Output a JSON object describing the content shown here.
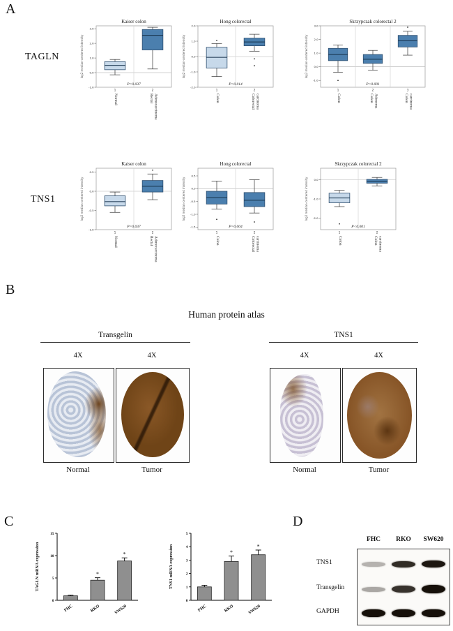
{
  "figure": {
    "panel_labels": {
      "a": "A",
      "b": "B",
      "c": "C",
      "d": "D"
    }
  },
  "panel_a": {
    "genes": {
      "row1": "TAGLN",
      "row2": "TNS1"
    }
  },
  "panel_b": {
    "title": "Human protein atlas",
    "groups": [
      {
        "name": "Transgelin",
        "images": [
          {
            "mag": "4X",
            "label": "Normal"
          },
          {
            "mag": "4X",
            "label": "Tumor"
          }
        ]
      },
      {
        "name": "TNS1",
        "images": [
          {
            "mag": "4X",
            "label": "Normal"
          },
          {
            "mag": "4X",
            "label": "Tumor"
          }
        ]
      }
    ]
  },
  "panel_d": {
    "lane_headers": [
      "FHC",
      "RKO",
      "SW620"
    ],
    "rows": [
      {
        "label": "TNS1",
        "band_intensity": [
          0.3,
          0.88,
          0.97
        ],
        "band_height": [
          7,
          9,
          10
        ]
      },
      {
        "label": "Transgelin",
        "band_intensity": [
          0.35,
          0.85,
          1.0
        ],
        "band_height": [
          7,
          10,
          12
        ]
      },
      {
        "label": "GAPDH",
        "band_intensity": [
          1.0,
          1.0,
          1.0
        ],
        "band_height": [
          11,
          11,
          11
        ]
      }
    ]
  },
  "chart_data": [
    {
      "type": "box",
      "panel": "A",
      "gene": "TAGLN",
      "title": "Kaiser colon",
      "ylabel": "log2 median-centered intensity",
      "p_label": "P=0.037",
      "ylim": [
        -1.0,
        3.2
      ],
      "yticks": [
        -1.0,
        0.0,
        1.0,
        2.0,
        3.0
      ],
      "groups": [
        {
          "label": "Normal",
          "shade": "light",
          "whisker_low": -0.15,
          "q1": 0.2,
          "median": 0.5,
          "q3": 0.75,
          "whisker_high": 0.9,
          "outliers": []
        },
        {
          "label": "Rectal Adenocarcinoma",
          "shade": "dark",
          "whisker_low": 0.25,
          "q1": 1.55,
          "median": 2.55,
          "q3": 2.95,
          "whisker_high": 3.1,
          "outliers": []
        }
      ]
    },
    {
      "type": "box",
      "panel": "A",
      "gene": "TAGLN",
      "title": "Hong colorectal",
      "ylabel": "log2 median-centered intensity",
      "p_label": "P=0.014",
      "ylim": [
        -2.0,
        2.0
      ],
      "yticks": [
        -2.0,
        -1.0,
        0.0,
        1.0,
        2.0
      ],
      "groups": [
        {
          "label": "Colon",
          "shade": "light",
          "whisker_low": -1.3,
          "q1": -0.75,
          "median": -0.05,
          "q3": 0.6,
          "whisker_high": 0.85,
          "outliers": [
            1.05
          ]
        },
        {
          "label": "Colorectal carcinoma",
          "shade": "dark",
          "whisker_low": 0.35,
          "q1": 0.7,
          "median": 0.95,
          "q3": 1.2,
          "whisker_high": 1.45,
          "outliers": [
            -0.15,
            -0.6
          ]
        }
      ]
    },
    {
      "type": "box",
      "panel": "A",
      "gene": "TAGLN",
      "title": "Skrzypczak colorectal 2",
      "ylabel": "log2 median-centered intensity",
      "p_label": "P<0.001",
      "ylim": [
        -1.5,
        3.0
      ],
      "yticks": [
        -1.0,
        0.0,
        1.0,
        2.0,
        3.0
      ],
      "groups": [
        {
          "label": "Colon",
          "shade": "dark",
          "whisker_low": -0.4,
          "q1": 0.45,
          "median": 0.9,
          "q3": 1.35,
          "whisker_high": 1.6,
          "outliers": [
            -1.0
          ]
        },
        {
          "label": "Colon Adenoma",
          "shade": "dark",
          "whisker_low": -0.25,
          "q1": 0.25,
          "median": 0.55,
          "q3": 0.9,
          "whisker_high": 1.2,
          "outliers": []
        },
        {
          "label": "Colon carcinoma",
          "shade": "dark",
          "whisker_low": 0.85,
          "q1": 1.45,
          "median": 1.9,
          "q3": 2.3,
          "whisker_high": 2.6,
          "outliers": [
            2.9
          ]
        }
      ]
    },
    {
      "type": "box",
      "panel": "A",
      "gene": "TNS1",
      "title": "Kaiser colon",
      "ylabel": "log2 median-centered intensity",
      "p_label": "P=0.037",
      "ylim": [
        -1.0,
        0.6
      ],
      "yticks": [
        -1.0,
        -0.5,
        0.0,
        0.5
      ],
      "groups": [
        {
          "label": "Normal",
          "shade": "light",
          "whisker_low": -0.55,
          "q1": -0.38,
          "median": -0.27,
          "q3": -0.12,
          "whisker_high": -0.02,
          "outliers": []
        },
        {
          "label": "Rectal Adenocarcinoma",
          "shade": "dark",
          "whisker_low": -0.22,
          "q1": -0.02,
          "median": 0.13,
          "q3": 0.28,
          "whisker_high": 0.45,
          "outliers": [
            0.55
          ]
        }
      ]
    },
    {
      "type": "box",
      "panel": "A",
      "gene": "TNS1",
      "title": "Hong colorectal",
      "ylabel": "log2 median-centered intensity",
      "p_label": "P=0.004",
      "ylim": [
        -1.6,
        0.8
      ],
      "yticks": [
        -1.5,
        -1.0,
        -0.5,
        0.0,
        0.5
      ],
      "groups": [
        {
          "label": "Colon",
          "shade": "dark",
          "whisker_low": -0.8,
          "q1": -0.6,
          "median": -0.35,
          "q3": -0.1,
          "whisker_high": 0.3,
          "outliers": [
            -1.2
          ]
        },
        {
          "label": "Colorectal carcinoma",
          "shade": "dark",
          "whisker_low": -0.95,
          "q1": -0.7,
          "median": -0.45,
          "q3": -0.15,
          "whisker_high": 0.35,
          "outliers": [
            -1.3
          ]
        }
      ]
    },
    {
      "type": "box",
      "panel": "A",
      "gene": "TNS1",
      "title": "Skrzypczak colorectal 2",
      "ylabel": "log2 median-centered intensity",
      "p_label": "P<0.001",
      "ylim": [
        -2.6,
        0.6
      ],
      "yticks": [
        -2.0,
        -1.0,
        0.0
      ],
      "groups": [
        {
          "label": "Colon",
          "shade": "light",
          "whisker_low": -1.4,
          "q1": -1.2,
          "median": -0.95,
          "q3": -0.7,
          "whisker_high": -0.55,
          "outliers": [
            -2.3
          ]
        },
        {
          "label": "Colon carcinoma",
          "shade": "dark",
          "whisker_low": -0.32,
          "q1": -0.18,
          "median": -0.08,
          "q3": 0.02,
          "whisker_high": 0.12,
          "outliers": []
        }
      ]
    },
    {
      "type": "bar",
      "panel": "C",
      "title": "",
      "ylabel": "TAGLN mRNA expression",
      "categories": [
        "FHC",
        "RKO",
        "SW620"
      ],
      "values": [
        1.0,
        4.5,
        8.8
      ],
      "errors": [
        0.15,
        0.55,
        0.7
      ],
      "sig": [
        "",
        "*",
        "*"
      ],
      "ylim": [
        0,
        15
      ],
      "yticks": [
        0,
        5,
        10,
        15
      ],
      "bar_color": "#8f8f8f"
    },
    {
      "type": "bar",
      "panel": "C",
      "title": "",
      "ylabel": "TNS1 mRNA expression",
      "categories": [
        "FHC",
        "RKO",
        "SW620"
      ],
      "values": [
        1.0,
        2.9,
        3.4
      ],
      "errors": [
        0.12,
        0.4,
        0.35
      ],
      "sig": [
        "",
        "*",
        "*"
      ],
      "ylim": [
        0,
        5
      ],
      "yticks": [
        0,
        1,
        2,
        3,
        4,
        5
      ],
      "bar_color": "#8f8f8f"
    }
  ]
}
